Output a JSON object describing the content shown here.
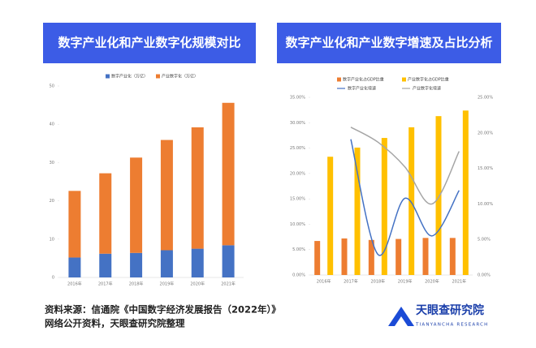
{
  "chart_data": [
    {
      "type": "stacked_bar",
      "title": "数字产业化和产业数字化规模对比",
      "categories": [
        "2016年",
        "2017年",
        "2018年",
        "2019年",
        "2020年",
        "2021年"
      ],
      "series": [
        {
          "name": "数字产业化（万亿）",
          "color": "#4472c4",
          "values": [
            5.2,
            6.2,
            6.4,
            7.1,
            7.5,
            8.4
          ]
        },
        {
          "name": "产业数字化（万亿）",
          "color": "#ed7d31",
          "values": [
            17.4,
            21.0,
            24.9,
            28.8,
            31.7,
            37.2
          ]
        }
      ],
      "ylim": [
        0,
        50
      ],
      "yticks": [
        0,
        10,
        20,
        30,
        40,
        50
      ]
    },
    {
      "type": "bar_line",
      "title": "数字产业化和产业数字增速及占比分析",
      "categories": [
        "2016年",
        "2017年",
        "2018年",
        "2019年",
        "2020年",
        "2021年"
      ],
      "series": [
        {
          "name": "数字产业化占GDP比重",
          "color": "#ed7d31",
          "type": "bar",
          "values": [
            6.7,
            7.2,
            6.9,
            7.1,
            7.3,
            7.3
          ]
        },
        {
          "name": "产业数字化占GDP比重",
          "color": "#ffc000",
          "type": "bar",
          "values": [
            23.3,
            25.1,
            27.0,
            29.1,
            31.3,
            32.4
          ]
        },
        {
          "name": "数字产业化增速",
          "color": "#4472c4",
          "type": "line",
          "axis": "y2",
          "values": [
            null,
            19.1,
            2.9,
            10.8,
            5.5,
            11.9
          ]
        },
        {
          "name": "产业数字化增速",
          "color": "#a5a5a5",
          "type": "line",
          "axis": "y2",
          "values": [
            null,
            20.8,
            18.7,
            15.2,
            10.0,
            17.4
          ]
        }
      ],
      "ylim": [
        0,
        35
      ],
      "yticks": [
        {
          "value": 0,
          "label": "0.00%"
        },
        {
          "value": 5,
          "label": "5.00%"
        },
        {
          "value": 10,
          "label": "10.00%"
        },
        {
          "value": 15,
          "label": "15.00%"
        },
        {
          "value": 20,
          "label": "20.00%"
        },
        {
          "value": 25,
          "label": "25.00%"
        },
        {
          "value": 30,
          "label": "30.00%"
        },
        {
          "value": 35,
          "label": "35.00%"
        }
      ],
      "y2lim": [
        0,
        25
      ],
      "y2ticks": [
        {
          "value": 0,
          "label": "0.00%"
        },
        {
          "value": 5,
          "label": "5.00%"
        },
        {
          "value": 10,
          "label": "10.00%"
        },
        {
          "value": 15,
          "label": "15.00%"
        },
        {
          "value": 20,
          "label": "20.00%"
        },
        {
          "value": 25,
          "label": "25.00%"
        }
      ]
    }
  ],
  "source": [
    "资料来源：信通院《中国数字经济发展报告（2022年）》",
    "网络公开资料，天眼查研究院整理"
  ],
  "logo": {
    "name": "天眼查研究院",
    "subtitle": "TIANYANCHA RESEARCH"
  }
}
